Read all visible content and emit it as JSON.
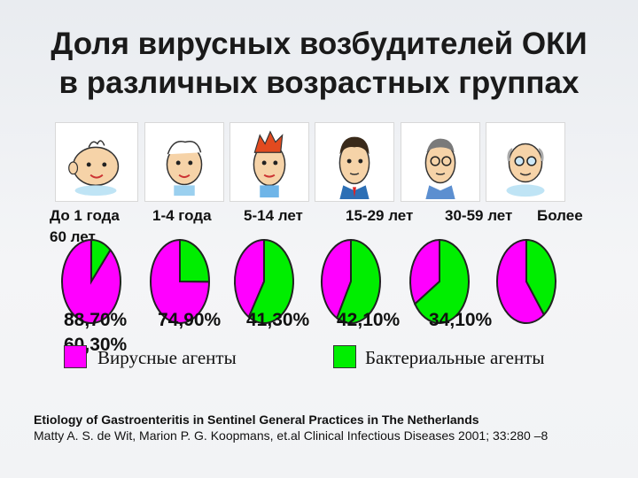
{
  "title": {
    "line1": "Доля вирусных возбудителей ОКИ",
    "line2": "в различных возрастных группах"
  },
  "age_labels": [
    "До 1 года",
    "1-4 года",
    "5-14 лет",
    "15-29 лет",
    "30-59 лет",
    "Более"
  ],
  "age_label_continuation": "60 лет",
  "percent_labels": [
    "88,70%",
    "74,90%",
    "41,30%",
    "42,10%",
    "34,10%"
  ],
  "percent_label_continuation": "60,30%",
  "legend": {
    "viral": "Вирусные агенты",
    "bacterial": "Бактериальные агенты"
  },
  "footer": {
    "line1": "Etiology of Gastroenteritis in Sentinel General Practices in The Netherlands",
    "line2": "Matty A. S. de Wit, Marion P. G. Koopmans, et.al Clinical Infectious Diseases 2001; 33:280 –8"
  },
  "colors": {
    "viral": "#ff00ff",
    "bacterial": "#00ee00",
    "outline": "#222222"
  },
  "icons": [
    "baby-face-icon",
    "toddler-face-icon",
    "child-face-icon",
    "young-man-face-icon",
    "adult-man-face-icon",
    "elderly-man-face-icon"
  ],
  "chart_data": {
    "type": "pie",
    "categories": [
      "До 1 года",
      "1-4 года",
      "5-14 лет",
      "15-29 лет",
      "30-59 лет",
      "Более 60 лет"
    ],
    "series": [
      {
        "name": "Вирусные агенты",
        "values": [
          88.7,
          74.9,
          41.3,
          42.1,
          34.1,
          60.3
        ]
      },
      {
        "name": "Бактериальные агенты",
        "values": [
          11.3,
          25.1,
          58.7,
          57.9,
          65.9,
          39.7
        ]
      }
    ],
    "unit": "%"
  }
}
